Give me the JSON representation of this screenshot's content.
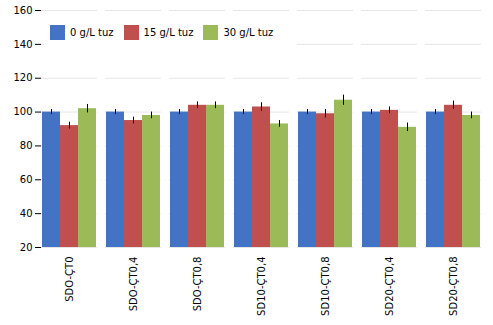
{
  "chart_data": {
    "type": "bar",
    "categories": [
      "SDO-ÇT0",
      "SDO-ÇT0,4",
      "SDO-ÇT0,8",
      "SD10-ÇT0,4",
      "SD10-ÇT0,8",
      "SD20-ÇT0,4",
      "SD20-ÇT0,8"
    ],
    "series": [
      {
        "name": "0 g/L tuz",
        "color": "#4472C4",
        "values": [
          100,
          100,
          100,
          100,
          100,
          100,
          100
        ],
        "errors": [
          1.5,
          1.5,
          1.5,
          1.5,
          1.5,
          1.5,
          1.5
        ]
      },
      {
        "name": "15 g/L tuz",
        "color": "#C0504D",
        "values": [
          92,
          95,
          104,
          103,
          99,
          101,
          104
        ],
        "errors": [
          2.0,
          2.0,
          2.0,
          2.5,
          2.5,
          2.0,
          2.5
        ]
      },
      {
        "name": "30 g/L tuz",
        "color": "#9BBB59",
        "values": [
          102,
          98,
          104,
          93,
          107,
          91,
          98
        ],
        "errors": [
          2.5,
          2.0,
          2.0,
          2.0,
          3.0,
          2.5,
          2.0
        ]
      }
    ],
    "ylim": [
      20,
      160
    ],
    "yticks": [
      20,
      40,
      60,
      80,
      100,
      120,
      140,
      160
    ],
    "grid": true,
    "legend": "upper left"
  }
}
